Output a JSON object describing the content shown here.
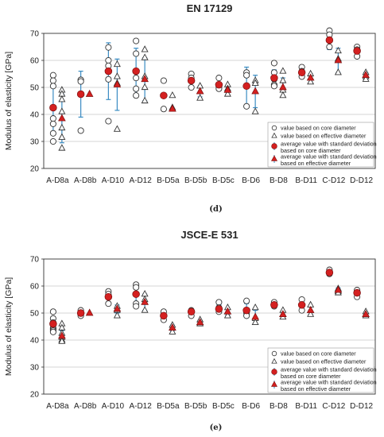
{
  "chart_data": [
    {
      "type": "scatter",
      "title": "EN 17129",
      "panel_label": "(d)",
      "ylabel": "Modulus of elasticity [GPa]",
      "ylim": [
        20,
        70
      ],
      "yticks": [
        20,
        30,
        40,
        50,
        60,
        70
      ],
      "grid": "horizontal",
      "categories": [
        "A-D8a",
        "A-D8b",
        "A-D10",
        "A-D12",
        "B-D5a",
        "B-D5b",
        "B-D5c",
        "B-D6",
        "B-D8",
        "B-D11",
        "C-D12",
        "D-D12"
      ],
      "legend": {
        "position": "lower-right",
        "entries": [
          "value based on core diameter",
          "value based on effective diameter",
          "average value with standard deviation based on core diameter",
          "average value with standard deviation based on effective diameter"
        ]
      },
      "core_values": [
        [
          54.5,
          52.5,
          50.5,
          38.5,
          36.5,
          33.0,
          30.0
        ],
        [
          52.8,
          52.2,
          34.0
        ],
        [
          64.8,
          60.0,
          58.0,
          53.0,
          37.5
        ],
        [
          67.2,
          62.5,
          53.5,
          49.5,
          47.0
        ],
        [
          52.5,
          42.0
        ],
        [
          55.0,
          53.5,
          50.0
        ],
        [
          53.5,
          50.0,
          49.5
        ],
        [
          55.5,
          54.5,
          43.0
        ],
        [
          59.0,
          55.5,
          53.0,
          51.0,
          50.5
        ],
        [
          57.5,
          56.0,
          54.0
        ],
        [
          71.0,
          69.5,
          65.0
        ],
        [
          65.0,
          64.0,
          61.5
        ]
      ],
      "effective_values": [
        [
          49.0,
          47.5,
          45.5,
          41.0,
          35.0,
          31.5,
          27.5
        ],
        [],
        [
          58.5,
          54.0,
          51.5,
          34.5
        ],
        [
          64.0,
          61.0,
          54.0,
          50.0,
          45.0
        ],
        [
          47.0,
          42.5
        ],
        [
          50.5,
          48.5,
          46.0
        ],
        [
          51.0,
          49.5,
          47.5
        ],
        [
          52.5,
          51.5,
          41.0
        ],
        [
          56.0,
          52.5,
          49.0,
          47.0
        ],
        [
          55.0,
          53.5,
          52.0
        ],
        [
          63.5,
          60.5,
          55.5
        ],
        [
          55.5,
          54.0,
          53.0
        ]
      ],
      "core_mean": [
        42.5,
        47.5,
        56.0,
        56.0,
        47.0,
        52.5,
        51.0,
        50.5,
        53.5,
        55.5,
        67.5,
        63.5
      ],
      "core_sd": [
        10.0,
        8.5,
        10.5,
        8.5,
        0,
        2.5,
        2.0,
        7.0,
        3.0,
        1.5,
        3.5,
        1.5
      ],
      "effective_mean": [
        38.5,
        47.5,
        51.0,
        53.0,
        42.0,
        48.5,
        49.0,
        48.5,
        50.0,
        53.5,
        60.0,
        54.5
      ],
      "effective_sd": [
        9.0,
        0,
        9.5,
        8.0,
        0,
        2.0,
        1.5,
        6.0,
        3.5,
        1.5,
        4.5,
        1.0
      ]
    },
    {
      "type": "scatter",
      "title": "JSCE-E 531",
      "panel_label": "(e)",
      "ylabel": "Modulus of elasticity [GPa]",
      "ylim": [
        20,
        70
      ],
      "yticks": [
        20,
        30,
        40,
        50,
        60,
        70
      ],
      "grid": "horizontal",
      "categories": [
        "A-D8a",
        "A-D8b",
        "A-D10",
        "A-D12",
        "B-D5a",
        "B-D5b",
        "B-D5c",
        "B-D6",
        "B-D8",
        "B-D11",
        "C-D12",
        "D-D12"
      ],
      "legend": {
        "position": "lower-right",
        "entries": [
          "value based on core diameter",
          "value based on effective diameter",
          "average value with standard deviation based on core diameter",
          "average value with standard deviation based on effective diameter"
        ]
      },
      "core_values": [
        [
          50.5,
          48.0,
          46.5,
          44.5,
          44.0,
          43.5,
          43.0
        ],
        [
          51.0,
          50.0,
          49.0
        ],
        [
          58.0,
          57.0,
          56.0,
          53.5
        ],
        [
          60.5,
          59.5,
          57.0,
          53.5,
          52.5
        ],
        [
          50.5,
          49.0,
          47.5
        ],
        [
          51.0,
          50.5,
          49.0
        ],
        [
          54.0,
          52.0,
          50.5
        ],
        [
          54.5,
          50.0,
          49.0
        ],
        [
          54.0,
          53.0,
          52.5
        ],
        [
          55.0,
          53.0,
          51.0
        ],
        [
          66.0,
          65.0,
          64.5
        ],
        [
          58.5,
          57.5,
          56.0
        ]
      ],
      "effective_values": [
        [
          46.0,
          44.5,
          42.5,
          41.0,
          40.0,
          39.5
        ],
        [],
        [
          52.5,
          51.0,
          49.0
        ],
        [
          57.0,
          55.0,
          51.0
        ],
        [
          45.5,
          44.5,
          43.0
        ],
        [
          47.5,
          46.5,
          46.0
        ],
        [
          52.0,
          50.5,
          49.0
        ],
        [
          52.0,
          48.0,
          46.5
        ],
        [
          51.0,
          49.5,
          48.5
        ],
        [
          53.0,
          51.0,
          49.5
        ],
        [
          59.0,
          58.0,
          57.5
        ],
        [
          50.5,
          49.5,
          49.0
        ]
      ],
      "core_mean": [
        46.0,
        50.0,
        56.0,
        57.0,
        49.0,
        50.5,
        51.5,
        51.0,
        53.0,
        53.0,
        65.0,
        57.5
      ],
      "core_sd": [
        2.5,
        1.0,
        2.0,
        3.5,
        1.5,
        1.0,
        1.5,
        2.5,
        0.8,
        1.8,
        0.8,
        1.0
      ],
      "effective_mean": [
        41.5,
        50.0,
        51.5,
        54.0,
        44.5,
        46.5,
        50.5,
        48.5,
        49.5,
        51.0,
        58.5,
        49.5
      ],
      "effective_sd": [
        2.0,
        0,
        1.5,
        3.0,
        1.0,
        0.8,
        1.3,
        2.5,
        1.0,
        1.5,
        0.8,
        0.7
      ]
    }
  ]
}
